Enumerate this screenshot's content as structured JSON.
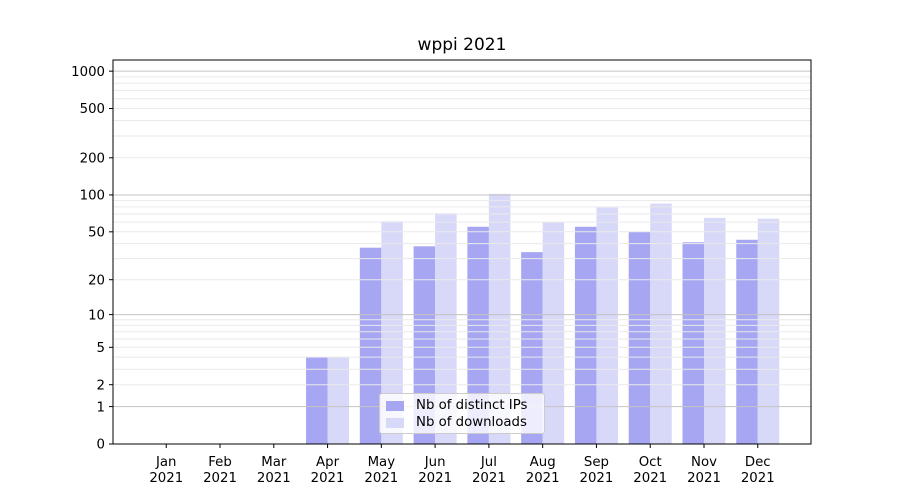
{
  "figure": {
    "background": "#ffffff"
  },
  "chart_data": {
    "type": "bar",
    "title": "wppi 2021",
    "categories": [
      "Jan",
      "Feb",
      "Mar",
      "Apr",
      "May",
      "Jun",
      "Jul",
      "Aug",
      "Sep",
      "Oct",
      "Nov",
      "Dec"
    ],
    "x_tick_year": "2021",
    "series": [
      {
        "name": "Nb of distinct IPs",
        "color": "#a6a6f3",
        "values": [
          0,
          0,
          0,
          4,
          37,
          38,
          55,
          34,
          55,
          50,
          41,
          43
        ]
      },
      {
        "name": "Nb of downloads",
        "color": "#d8d8f8",
        "values": [
          0,
          0,
          0,
          4,
          61,
          71,
          102,
          60,
          79,
          85,
          65,
          64
        ]
      }
    ],
    "yscale": "log1p",
    "ylim": [
      0,
      1230
    ],
    "yticks": [
      0,
      1,
      2,
      5,
      10,
      20,
      50,
      100,
      200,
      500,
      1000
    ],
    "major_gridlines": [
      1,
      10,
      100,
      1000
    ],
    "minor_gridlines": [
      2,
      3,
      4,
      5,
      6,
      7,
      8,
      9,
      20,
      30,
      40,
      50,
      60,
      70,
      80,
      90,
      200,
      300,
      400,
      500,
      600,
      700,
      800,
      900
    ],
    "grid": true,
    "legend_position": "lower-center-inside",
    "colors": {
      "major_grid": "#c3c3c3",
      "minor_grid": "#eaeaea",
      "axis": "#000000",
      "text": "#000000"
    }
  }
}
